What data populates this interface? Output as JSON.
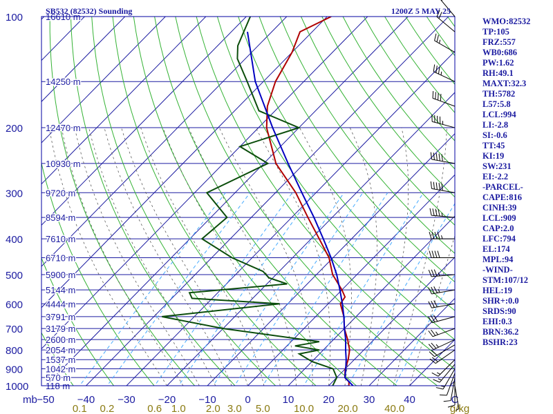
{
  "header": {
    "station": "SB532 (82532) Sounding",
    "time": "1200Z  5 MAY 25"
  },
  "chart_data": {
    "type": "skew-t log-p",
    "pressure_axis_unit": "mb",
    "pressure_ticks": [
      100,
      200,
      300,
      400,
      500,
      600,
      700,
      800,
      900,
      1000
    ],
    "temperature_ticks": [
      -50,
      -40,
      -30,
      -20,
      -10,
      0,
      10,
      20,
      30,
      40
    ],
    "temperature_axis_end_label": "C",
    "mixing_ratio_unit": "g/kg",
    "mixing_ratio_ticks": [
      "0.1",
      "0.2",
      "0.6",
      "1.0",
      "2.0",
      "3.0",
      "5.0",
      "10.0",
      "20.0",
      "40.0"
    ],
    "height_labels": [
      {
        "p": 100,
        "label": "16610 m"
      },
      {
        "p": 150,
        "label": "14250 m"
      },
      {
        "p": 200,
        "label": "12470 m"
      },
      {
        "p": 250,
        "label": "10930 m"
      },
      {
        "p": 300,
        "label": "9720 m"
      },
      {
        "p": 350,
        "label": "8594 m"
      },
      {
        "p": 400,
        "label": "7610 m"
      },
      {
        "p": 450,
        "label": "6710 m"
      },
      {
        "p": 500,
        "label": "5900 m"
      },
      {
        "p": 550,
        "label": "5144 m"
      },
      {
        "p": 600,
        "label": "4444 m"
      },
      {
        "p": 650,
        "label": "3791 m"
      },
      {
        "p": 700,
        "label": "3179 m"
      },
      {
        "p": 750,
        "label": "2600 m"
      },
      {
        "p": 800,
        "label": "2054 m"
      },
      {
        "p": 850,
        "label": "1537 m"
      },
      {
        "p": 900,
        "label": "1042 m"
      },
      {
        "p": 950,
        "label": "570 m"
      },
      {
        "p": 1000,
        "label": "118 m"
      }
    ],
    "temperature_profile": [
      {
        "p": 1000,
        "t": 25
      },
      {
        "p": 975,
        "t": 24
      },
      {
        "p": 950,
        "t": 22
      },
      {
        "p": 925,
        "t": 21
      },
      {
        "p": 900,
        "t": 20
      },
      {
        "p": 850,
        "t": 18.5
      },
      {
        "p": 800,
        "t": 16.5
      },
      {
        "p": 775,
        "t": 15
      },
      {
        "p": 750,
        "t": 13.5
      },
      {
        "p": 700,
        "t": 10
      },
      {
        "p": 650,
        "t": 7
      },
      {
        "p": 600,
        "t": 3
      },
      {
        "p": 575,
        "t": 2.5
      },
      {
        "p": 550,
        "t": 0
      },
      {
        "p": 500,
        "t": -6
      },
      {
        "p": 450,
        "t": -11
      },
      {
        "p": 400,
        "t": -18
      },
      {
        "p": 350,
        "t": -26
      },
      {
        "p": 300,
        "t": -35
      },
      {
        "p": 250,
        "t": -47
      },
      {
        "p": 200,
        "t": -58
      },
      {
        "p": 175,
        "t": -63
      },
      {
        "p": 150,
        "t": -67
      },
      {
        "p": 125,
        "t": -70
      },
      {
        "p": 110,
        "t": -73
      },
      {
        "p": 100,
        "t": -69
      }
    ],
    "dewpoint_profile": [
      {
        "p": 1000,
        "td": 21
      },
      {
        "p": 950,
        "td": 20
      },
      {
        "p": 900,
        "td": 17
      },
      {
        "p": 860,
        "td": 10
      },
      {
        "p": 820,
        "td": 5
      },
      {
        "p": 800,
        "td": 9
      },
      {
        "p": 780,
        "td": 2
      },
      {
        "p": 760,
        "td": 7
      },
      {
        "p": 700,
        "td": -20
      },
      {
        "p": 650,
        "td": -38
      },
      {
        "p": 600,
        "td": -12
      },
      {
        "p": 580,
        "td": -35
      },
      {
        "p": 560,
        "td": -37
      },
      {
        "p": 530,
        "td": -15
      },
      {
        "p": 510,
        "td": -21
      },
      {
        "p": 490,
        "td": -24
      },
      {
        "p": 450,
        "td": -35
      },
      {
        "p": 400,
        "td": -47
      },
      {
        "p": 350,
        "td": -46
      },
      {
        "p": 300,
        "td": -57
      },
      {
        "p": 250,
        "td": -49
      },
      {
        "p": 225,
        "td": -60
      },
      {
        "p": 200,
        "td": -50
      },
      {
        "p": 180,
        "td": -64
      },
      {
        "p": 150,
        "td": -74
      },
      {
        "p": 130,
        "td": -82
      },
      {
        "p": 120,
        "td": -85
      },
      {
        "p": 100,
        "td": -89
      }
    ],
    "parcel_profile": [
      {
        "p": 1000,
        "t": 26
      },
      {
        "p": 950,
        "t": 22
      },
      {
        "p": 909,
        "t": 20.5
      },
      {
        "p": 850,
        "t": 18
      },
      {
        "p": 800,
        "t": 15.5
      },
      {
        "p": 750,
        "t": 13
      },
      {
        "p": 700,
        "t": 10
      },
      {
        "p": 650,
        "t": 7
      },
      {
        "p": 600,
        "t": 3.5
      },
      {
        "p": 550,
        "t": -0.5
      },
      {
        "p": 500,
        "t": -5
      },
      {
        "p": 450,
        "t": -10.5
      },
      {
        "p": 400,
        "t": -17
      },
      {
        "p": 350,
        "t": -24.5
      },
      {
        "p": 300,
        "t": -33.5
      },
      {
        "p": 250,
        "t": -44
      },
      {
        "p": 200,
        "t": -56.5
      },
      {
        "p": 150,
        "t": -72
      },
      {
        "p": 110,
        "t": -86
      }
    ],
    "wind_barbs": [
      {
        "p": 1000,
        "dir": 170,
        "spd": 5
      },
      {
        "p": 975,
        "dir": 180,
        "spd": 10
      },
      {
        "p": 950,
        "dir": 190,
        "spd": 10
      },
      {
        "p": 925,
        "dir": 200,
        "spd": 10
      },
      {
        "p": 900,
        "dir": 210,
        "spd": 15
      },
      {
        "p": 875,
        "dir": 220,
        "spd": 15
      },
      {
        "p": 850,
        "dir": 225,
        "spd": 15
      },
      {
        "p": 800,
        "dir": 235,
        "spd": 20
      },
      {
        "p": 775,
        "dir": 240,
        "spd": 20
      },
      {
        "p": 750,
        "dir": 245,
        "spd": 25
      },
      {
        "p": 700,
        "dir": 250,
        "spd": 25
      },
      {
        "p": 650,
        "dir": 255,
        "spd": 30
      },
      {
        "p": 600,
        "dir": 260,
        "spd": 30
      },
      {
        "p": 550,
        "dir": 260,
        "spd": 35
      },
      {
        "p": 500,
        "dir": 265,
        "spd": 35
      },
      {
        "p": 450,
        "dir": 270,
        "spd": 40
      },
      {
        "p": 400,
        "dir": 270,
        "spd": 45
      },
      {
        "p": 350,
        "dir": 275,
        "spd": 45
      },
      {
        "p": 300,
        "dir": 280,
        "spd": 50
      },
      {
        "p": 250,
        "dir": 280,
        "spd": 50
      },
      {
        "p": 200,
        "dir": 285,
        "spd": 45
      },
      {
        "p": 175,
        "dir": 290,
        "spd": 40
      },
      {
        "p": 150,
        "dir": 295,
        "spd": 35
      },
      {
        "p": 125,
        "dir": 300,
        "spd": 25
      },
      {
        "p": 110,
        "dir": 310,
        "spd": 20
      },
      {
        "p": 100,
        "dir": 320,
        "spd": 15
      }
    ],
    "colors": {
      "frame": "#0000a0",
      "isobar": "#1a1aa0",
      "isotherm": "#1a1aa0",
      "dry_adiabat": "#33b233",
      "moist_adiabat": "#5a5a5a",
      "mixing_ratio": "#44aaff",
      "temperature": "#b00000",
      "dewpoint": "#0b4d0b",
      "parcel": "#0000c0",
      "mixing_label": "#8a7a10",
      "text": "#1a1aa0"
    }
  },
  "indices": [
    "WMO:82532",
    "TP:105",
    "FRZ:557",
    "WB0:686",
    "PW:1.62",
    "RH:49.1",
    "MAXT:32.3",
    "TH:5782",
    "L57:5.8",
    "LCL:994",
    "LI:-2.8",
    "SI:-0.6",
    "TT:45",
    "KI:19",
    "SW:231",
    "EI:-2.2",
    "-PARCEL-",
    "CAPE:816",
    "CINH:39",
    "LCL:909",
    "CAP:2.0",
    "LFC:794",
    "EL:174",
    "MPL:94",
    "-WIND-",
    "STM:107/12",
    "HEL:19",
    "SHR+:0.0",
    "SRDS:90",
    "EHI:0.3",
    "BRN:36.2",
    "BSHR:23"
  ]
}
